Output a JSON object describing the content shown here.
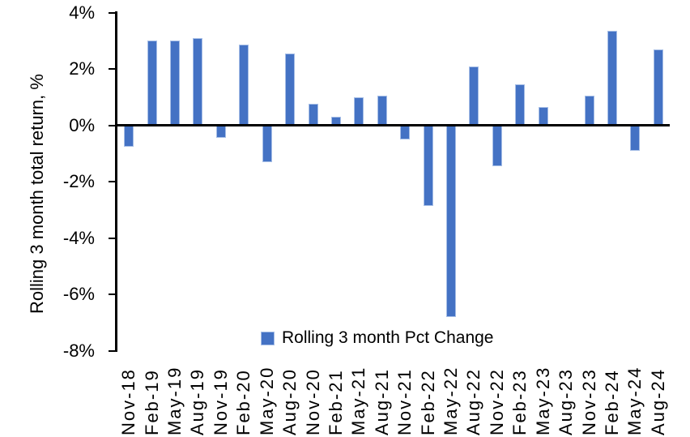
{
  "chart_data": {
    "type": "bar",
    "title": "",
    "xlabel": "",
    "ylabel": "Rolling 3 month total return, %",
    "ylim": [
      -8,
      4
    ],
    "ytick_step": 2,
    "ytick_suffix": "%",
    "grid": false,
    "legend_position": "bottom",
    "categories": [
      "Nov-18",
      "Feb-19",
      "May-19",
      "Aug-19",
      "Nov-19",
      "Feb-20",
      "May-20",
      "Aug-20",
      "Nov-20",
      "Feb-21",
      "May-21",
      "Aug-21",
      "Nov-21",
      "Feb-22",
      "May-22",
      "Aug-22",
      "Nov-22",
      "Feb-23",
      "May-23",
      "Aug-23",
      "Nov-23",
      "Feb-24",
      "May-24",
      "Aug-24"
    ],
    "series": [
      {
        "name": "Rolling 3 month Pct Change",
        "values": [
          -0.75,
          3.0,
          3.0,
          3.1,
          -0.45,
          2.85,
          -1.3,
          2.55,
          0.75,
          0.3,
          1.0,
          1.05,
          -0.5,
          -2.85,
          -6.8,
          2.1,
          -1.45,
          1.45,
          0.65,
          0.0,
          1.05,
          3.35,
          -0.9,
          2.7
        ]
      }
    ],
    "colors": {
      "bar_fill": "#4472C4",
      "bar_border": "#A6BEE6",
      "axis": "#000000",
      "text": "#000000"
    }
  }
}
